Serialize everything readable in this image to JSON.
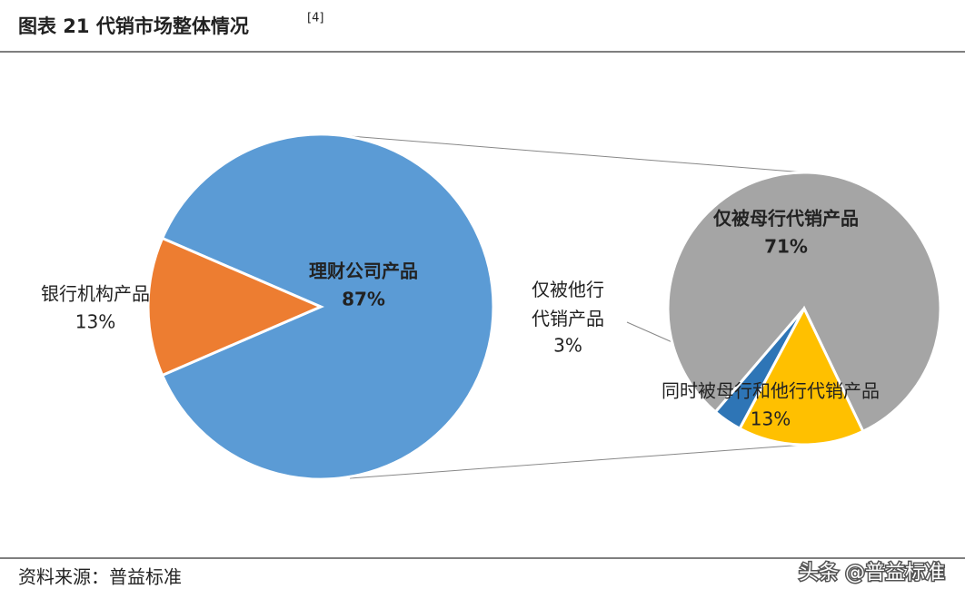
{
  "chart_data": {
    "type": "pie-of-pie",
    "title": "图表 21 代销市场整体情况",
    "title_ref": "[4]",
    "primary": {
      "categories": [
        "理财公司产品",
        "银行机构产品"
      ],
      "values": [
        87,
        13
      ],
      "value_labels": [
        "87%",
        "13%"
      ],
      "colors": [
        "#5b9bd5",
        "#ed7d31"
      ]
    },
    "secondary": {
      "categories": [
        "仅被母行代销产品",
        "仅被他行代销产品",
        "同时被母行和他行代销产品"
      ],
      "values": [
        71,
        3,
        13
      ],
      "value_labels": [
        "71%",
        "3%",
        "13%"
      ],
      "colors": [
        "#a5a5a5",
        "#2e75b6",
        "#ffc000"
      ]
    },
    "source": "资料来源：普益标准",
    "watermark": "头条 @普益标准"
  }
}
